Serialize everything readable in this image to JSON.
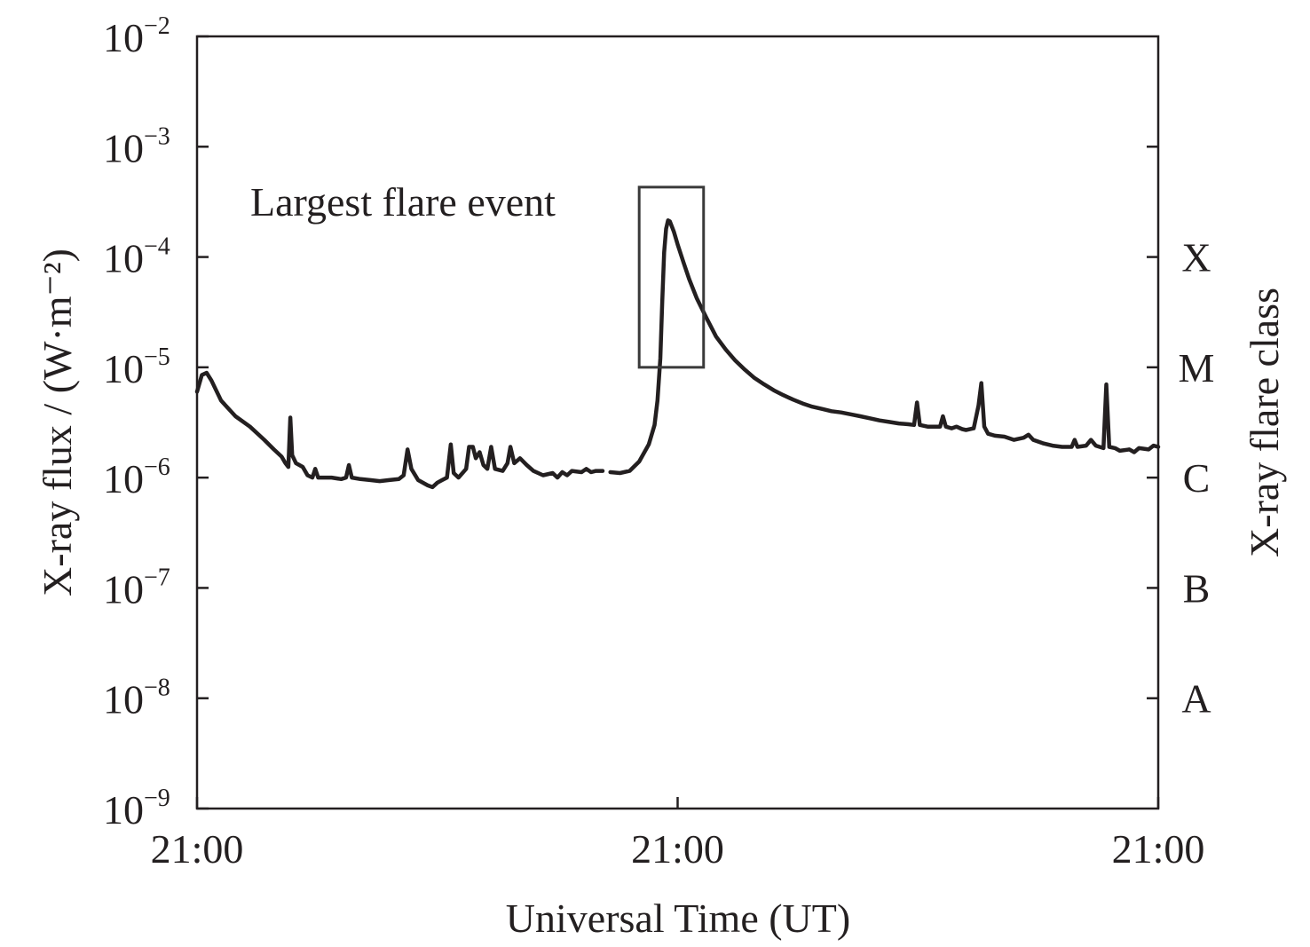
{
  "chart_data": {
    "type": "line",
    "xlabel": "Universal Time (UT)",
    "ylabel": "X-ray flux / (W·m⁻²)",
    "y2label": "X-ray flare class",
    "yscale": "log",
    "ylim": [
      1e-09,
      0.01
    ],
    "xlim": [
      0,
      100
    ],
    "x_ticks": [
      {
        "x": 0,
        "label": "21:00"
      },
      {
        "x": 50,
        "label": "21:00"
      },
      {
        "x": 100,
        "label": "21:00"
      }
    ],
    "y_ticks": [
      {
        "exp": -2,
        "label": "10",
        "sup": "−2"
      },
      {
        "exp": -3,
        "label": "10",
        "sup": "−3"
      },
      {
        "exp": -4,
        "label": "10",
        "sup": "−4"
      },
      {
        "exp": -5,
        "label": "10",
        "sup": "−5"
      },
      {
        "exp": -6,
        "label": "10",
        "sup": "−6"
      },
      {
        "exp": -7,
        "label": "10",
        "sup": "−7"
      },
      {
        "exp": -8,
        "label": "10",
        "sup": "−8"
      },
      {
        "exp": -9,
        "label": "10",
        "sup": "−9"
      }
    ],
    "flare_classes": [
      {
        "exp": -4,
        "label": "X"
      },
      {
        "exp": -5,
        "label": "M"
      },
      {
        "exp": -6,
        "label": "C"
      },
      {
        "exp": -7,
        "label": "B"
      },
      {
        "exp": -8,
        "label": "A"
      }
    ],
    "annotation": {
      "text": "Largest flare event",
      "box_x": [
        46.0,
        52.7
      ],
      "box_y": [
        1e-05,
        0.00043
      ]
    },
    "grid": false,
    "colors": {
      "line": "#231f20",
      "axis": "#231f20",
      "box": "#3a3a3a"
    },
    "series": [
      {
        "segments": [
          [
            [
              0,
              6e-06
            ],
            [
              0.5,
              8.5e-06
            ],
            [
              1.0,
              8.9e-06
            ],
            [
              1.5,
              7.6e-06
            ],
            [
              2.5,
              5e-06
            ],
            [
              4,
              3.6e-06
            ],
            [
              5.5,
              2.9e-06
            ],
            [
              7,
              2.2e-06
            ],
            [
              8,
              1.8e-06
            ],
            [
              8.8,
              1.55e-06
            ],
            [
              9.2,
              1.35e-06
            ],
            [
              9.5,
              1.25e-06
            ],
            [
              9.7,
              3.5e-06
            ],
            [
              9.9,
              1.6e-06
            ],
            [
              10.3,
              1.35e-06
            ],
            [
              11,
              1.25e-06
            ],
            [
              11.5,
              1.05e-06
            ],
            [
              12,
              1e-06
            ],
            [
              12.3,
              1.2e-06
            ],
            [
              12.6,
              1e-06
            ],
            [
              13,
              1e-06
            ],
            [
              14,
              1e-06
            ],
            [
              15,
              9.7e-07
            ],
            [
              15.5,
              1e-06
            ],
            [
              15.8,
              1.3e-06
            ],
            [
              16.1,
              1e-06
            ],
            [
              17,
              9.7e-07
            ],
            [
              18,
              9.5e-07
            ],
            [
              19,
              9.3e-07
            ],
            [
              20,
              9.5e-07
            ],
            [
              21,
              9.7e-07
            ],
            [
              21.5,
              1.05e-06
            ],
            [
              21.9,
              1.8e-06
            ],
            [
              22.3,
              1.2e-06
            ],
            [
              23,
              9.5e-07
            ],
            [
              24,
              8.5e-07
            ],
            [
              24.5,
              8.2e-07
            ],
            [
              25,
              9e-07
            ],
            [
              25.5,
              9.5e-07
            ],
            [
              26,
              1e-06
            ],
            [
              26.4,
              2e-06
            ],
            [
              26.7,
              1.1e-06
            ],
            [
              27.2,
              1e-06
            ],
            [
              28,
              1.2e-06
            ],
            [
              28.3,
              1.9e-06
            ],
            [
              28.7,
              1.9e-06
            ],
            [
              29,
              1.5e-06
            ],
            [
              29.4,
              1.7e-06
            ],
            [
              29.8,
              1.3e-06
            ],
            [
              30.2,
              1.2e-06
            ],
            [
              30.6,
              1.9e-06
            ],
            [
              31,
              1.2e-06
            ],
            [
              31.8,
              1.15e-06
            ],
            [
              32.3,
              1.35e-06
            ],
            [
              32.6,
              1.9e-06
            ],
            [
              33,
              1.35e-06
            ],
            [
              33.6,
              1.5e-06
            ],
            [
              34.3,
              1.3e-06
            ],
            [
              35,
              1.15e-06
            ],
            [
              36,
              1.05e-06
            ],
            [
              37,
              1.1e-06
            ],
            [
              37.5,
              1e-06
            ],
            [
              38,
              1.12e-06
            ],
            [
              38.5,
              1.05e-06
            ],
            [
              39,
              1.15e-06
            ],
            [
              40,
              1.12e-06
            ],
            [
              40.5,
              1.2e-06
            ],
            [
              41,
              1.12e-06
            ],
            [
              41.5,
              1.15e-06
            ],
            [
              42.2,
              1.15e-06
            ]
          ],
          [
            [
              43,
              1.12e-06
            ],
            [
              44,
              1.1e-06
            ],
            [
              45,
              1.15e-06
            ],
            [
              46,
              1.4e-06
            ],
            [
              47,
              2e-06
            ],
            [
              47.6,
              3e-06
            ],
            [
              47.9,
              5e-06
            ],
            [
              48.2,
              1.2e-05
            ],
            [
              48.4,
              4e-05
            ],
            [
              48.6,
              0.00011
            ],
            [
              48.8,
              0.00018
            ],
            [
              49.0,
              0.000215
            ],
            [
              49.2,
              0.00021
            ],
            [
              49.6,
              0.00017
            ],
            [
              50,
              0.00013
            ],
            [
              50.6,
              9e-05
            ],
            [
              51.2,
              6.3e-05
            ],
            [
              52,
              4.2e-05
            ],
            [
              53,
              2.8e-05
            ],
            [
              54,
              1.9e-05
            ],
            [
              55,
              1.45e-05
            ],
            [
              56,
              1.15e-05
            ],
            [
              57,
              9.5e-06
            ],
            [
              58,
              8e-06
            ],
            [
              59,
              7e-06
            ],
            [
              60,
              6.2e-06
            ],
            [
              61,
              5.6e-06
            ],
            [
              62,
              5.1e-06
            ],
            [
              63,
              4.7e-06
            ],
            [
              64,
              4.4e-06
            ],
            [
              65,
              4.2e-06
            ],
            [
              66,
              4e-06
            ],
            [
              67,
              3.9e-06
            ],
            [
              68,
              3.75e-06
            ],
            [
              69,
              3.6e-06
            ],
            [
              70,
              3.45e-06
            ],
            [
              71,
              3.3e-06
            ],
            [
              72,
              3.2e-06
            ],
            [
              73,
              3.1e-06
            ],
            [
              74,
              3.05e-06
            ],
            [
              74.6,
              3e-06
            ],
            [
              74.9,
              4.8e-06
            ],
            [
              75.2,
              3e-06
            ],
            [
              76,
              2.9e-06
            ],
            [
              77.3,
              2.9e-06
            ],
            [
              77.6,
              3.6e-06
            ],
            [
              77.9,
              2.9e-06
            ],
            [
              78.5,
              2.8e-06
            ],
            [
              79,
              2.9e-06
            ],
            [
              79.6,
              2.75e-06
            ],
            [
              80,
              2.7e-06
            ],
            [
              80.8,
              2.8e-06
            ],
            [
              81.3,
              4.5e-06
            ],
            [
              81.6,
              7.2e-06
            ],
            [
              81.9,
              2.9e-06
            ],
            [
              82.3,
              2.5e-06
            ],
            [
              83,
              2.4e-06
            ],
            [
              84,
              2.35e-06
            ],
            [
              85,
              2.2e-06
            ],
            [
              86,
              2.3e-06
            ],
            [
              86.5,
              2.45e-06
            ],
            [
              87,
              2.2e-06
            ],
            [
              88,
              2.05e-06
            ],
            [
              89,
              1.95e-06
            ],
            [
              90,
              1.9e-06
            ],
            [
              91,
              1.9e-06
            ],
            [
              91.3,
              2.2e-06
            ],
            [
              91.6,
              1.9e-06
            ],
            [
              92.5,
              1.95e-06
            ],
            [
              93,
              2.2e-06
            ],
            [
              93.5,
              1.95e-06
            ],
            [
              94.3,
              1.85e-06
            ],
            [
              94.6,
              7e-06
            ],
            [
              94.9,
              1.9e-06
            ],
            [
              95.5,
              1.85e-06
            ],
            [
              96,
              1.75e-06
            ],
            [
              97,
              1.8e-06
            ],
            [
              97.5,
              1.7e-06
            ],
            [
              98,
              1.85e-06
            ],
            [
              99,
              1.8e-06
            ],
            [
              99.5,
              1.95e-06
            ],
            [
              100,
              1.9e-06
            ]
          ]
        ]
      }
    ]
  }
}
